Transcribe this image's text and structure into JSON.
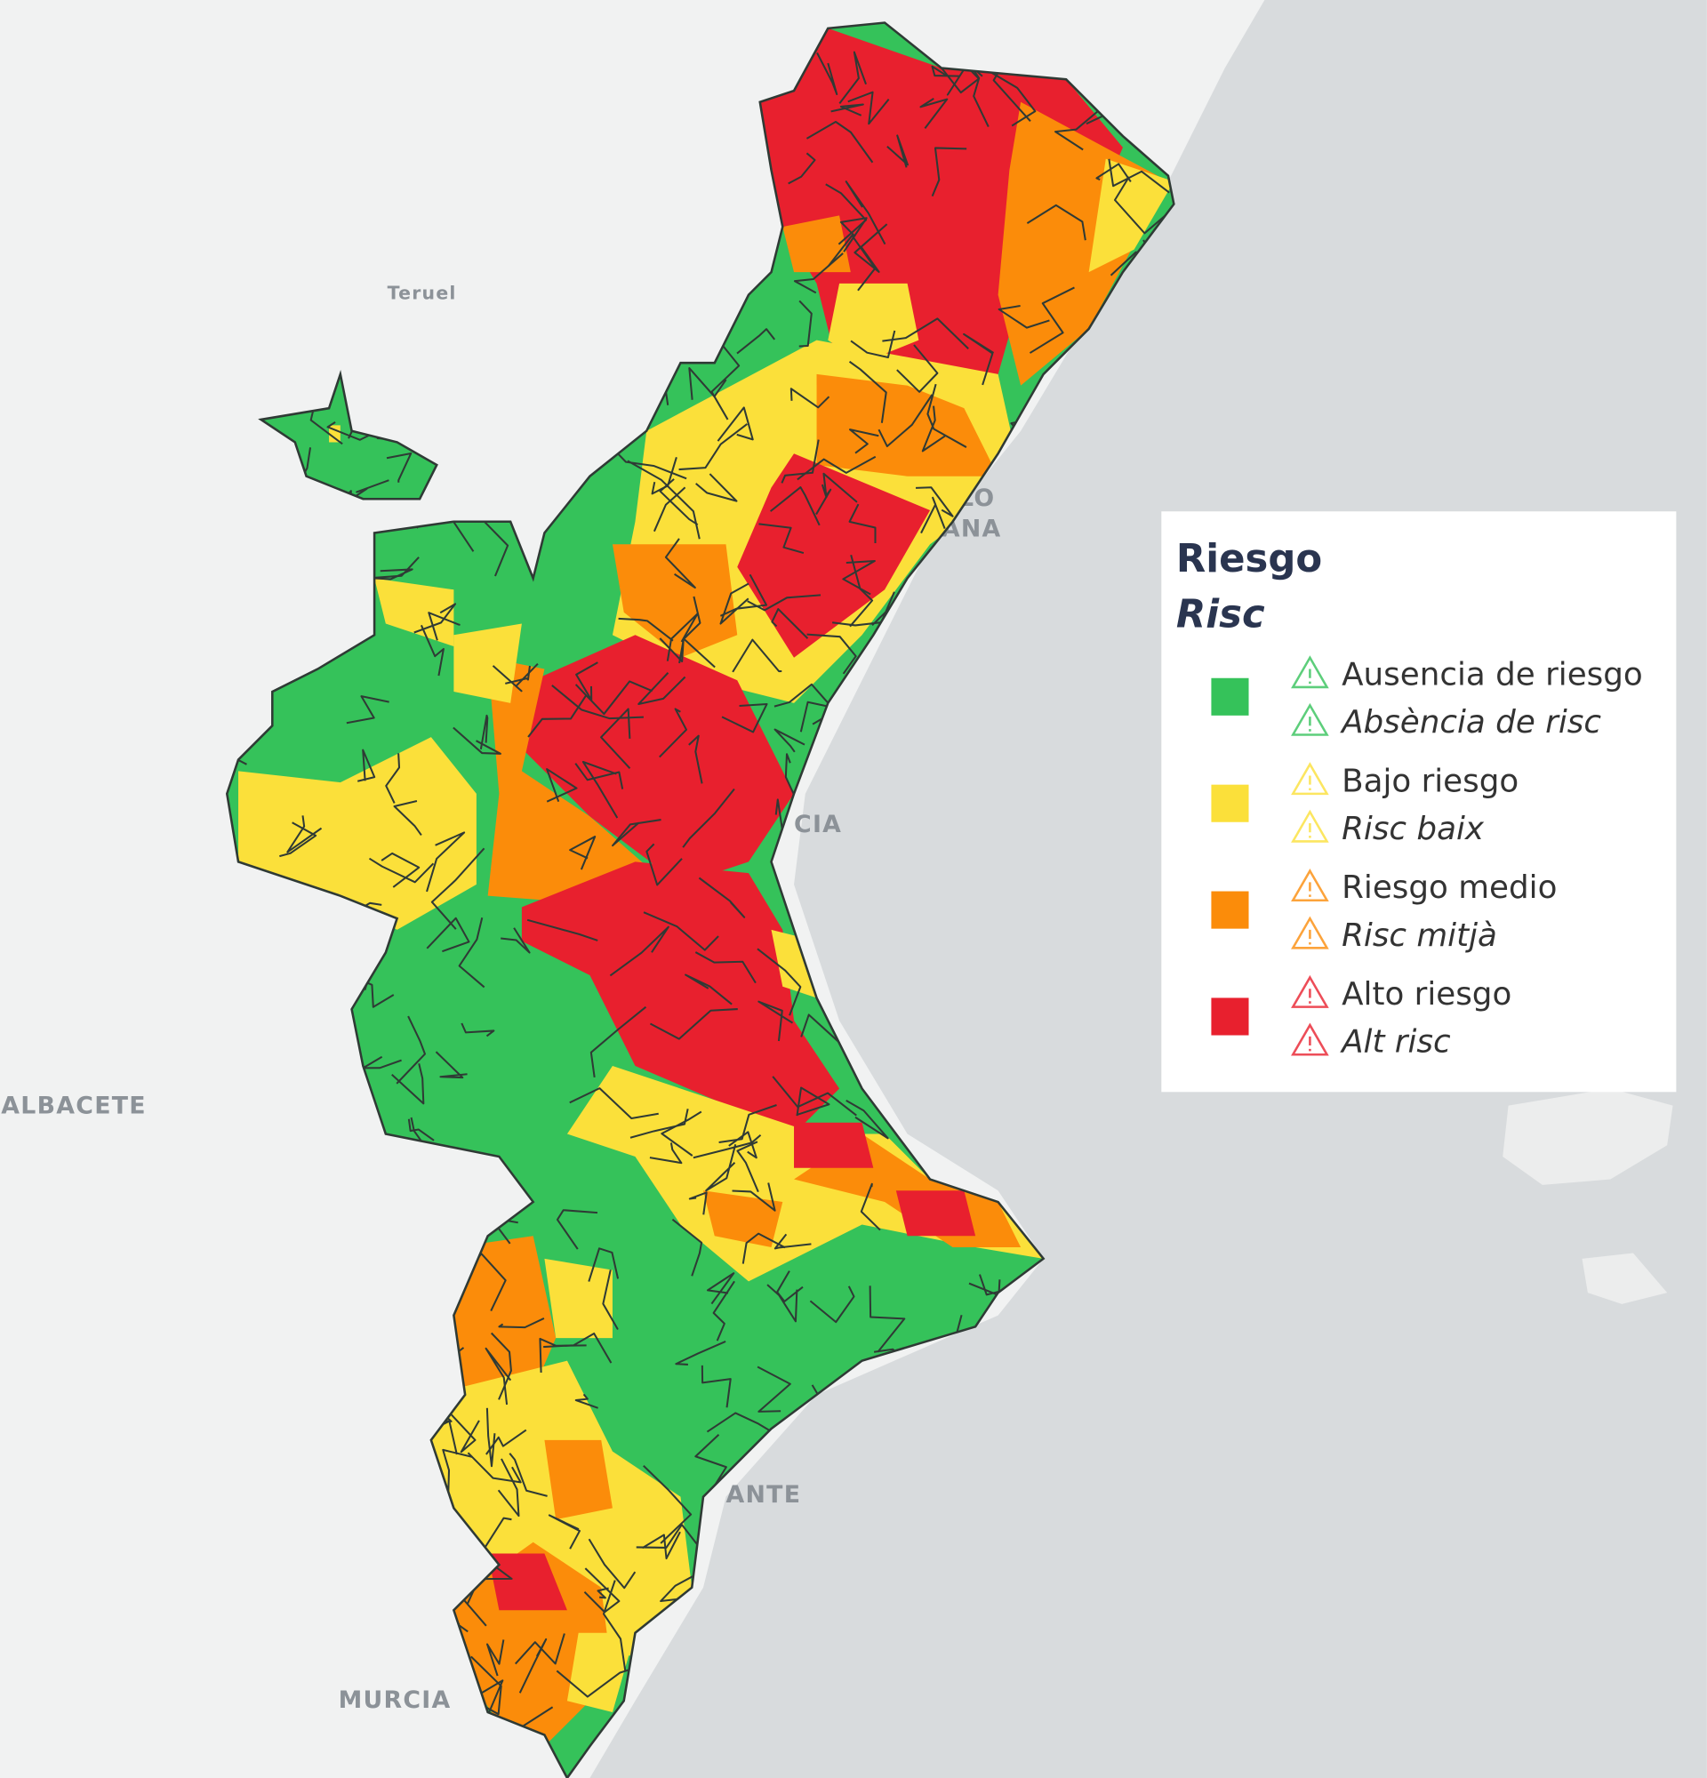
{
  "map_labels": {
    "teruel": "Teruel",
    "albacete": "ALBACETE",
    "murcia": "MURCIA",
    "castello_1": "LO",
    "castello_2": "ANA",
    "valencia": "CIA",
    "alicante": "ANTE"
  },
  "legend": {
    "title": "Riesgo",
    "subtitle": "Risc",
    "items": [
      {
        "label": "Ausencia de riesgo",
        "label_ca": "Absència de risc",
        "color": "#35c25a"
      },
      {
        "label": "Bajo riesgo",
        "label_ca": "Risc baix",
        "color": "#fbe03a"
      },
      {
        "label": "Riesgo medio",
        "label_ca": "Risc mitjà",
        "color": "#fb8c0a"
      },
      {
        "label": "Alto riesgo",
        "label_ca": "Alt risc",
        "color": "#e8202e"
      }
    ]
  }
}
